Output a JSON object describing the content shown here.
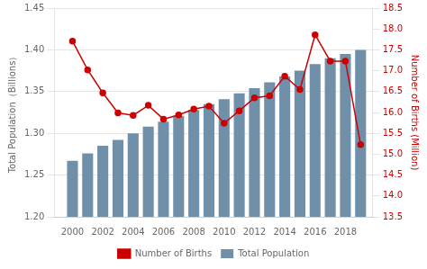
{
  "chart_data": {
    "type": "bar",
    "x": [
      2000,
      2001,
      2002,
      2003,
      2004,
      2005,
      2006,
      2007,
      2008,
      2009,
      2010,
      2011,
      2012,
      2013,
      2014,
      2015,
      2016,
      2017,
      2018,
      2019
    ],
    "xlim": [
      1998.8,
      2019.8
    ],
    "xticks": [
      2000,
      2002,
      2004,
      2006,
      2008,
      2010,
      2012,
      2014,
      2016,
      2018
    ],
    "ylabel": "Total Population（Billions）",
    "y2label": "Number of Births (Million)",
    "ylim": [
      1.2,
      1.45
    ],
    "yticks": [
      {
        "value": 1.2,
        "label": "1.20"
      },
      1.25,
      {
        "value": 1.3,
        "label": "1.30"
      },
      1.35,
      {
        "value": 1.4,
        "label": "1.40"
      },
      1.45
    ],
    "y2lim": [
      13.5,
      18.5
    ],
    "y2ticks": [
      13.5,
      {
        "value": 14,
        "label": "14.0"
      },
      14.5,
      {
        "value": 15,
        "label": "15.0"
      },
      15.5,
      {
        "value": 16,
        "label": "16.0"
      },
      16.5,
      {
        "value": 17,
        "label": "17.0"
      },
      17.5,
      {
        "value": 18,
        "label": "18.0"
      },
      18.5
    ],
    "grid": true,
    "legend": "bottom",
    "series": [
      {
        "name": "Total Population",
        "type": "bar",
        "color": "#7090AA",
        "values": [
          1.267,
          1.276,
          1.285,
          1.292,
          1.3,
          1.308,
          1.314,
          1.321,
          1.328,
          1.335,
          1.341,
          1.348,
          1.354,
          1.361,
          1.368,
          1.375,
          1.383,
          1.39,
          1.395,
          1.4
        ]
      },
      {
        "name": "Number of Births",
        "type": "line",
        "color": "#CC0000",
        "marker": "circle",
        "axis": "y2",
        "values": [
          17.71,
          17.02,
          16.47,
          15.99,
          15.93,
          16.17,
          15.84,
          15.94,
          16.08,
          16.15,
          15.74,
          16.04,
          16.35,
          16.4,
          16.87,
          16.55,
          17.86,
          17.23,
          17.23,
          15.23
        ]
      }
    ]
  }
}
